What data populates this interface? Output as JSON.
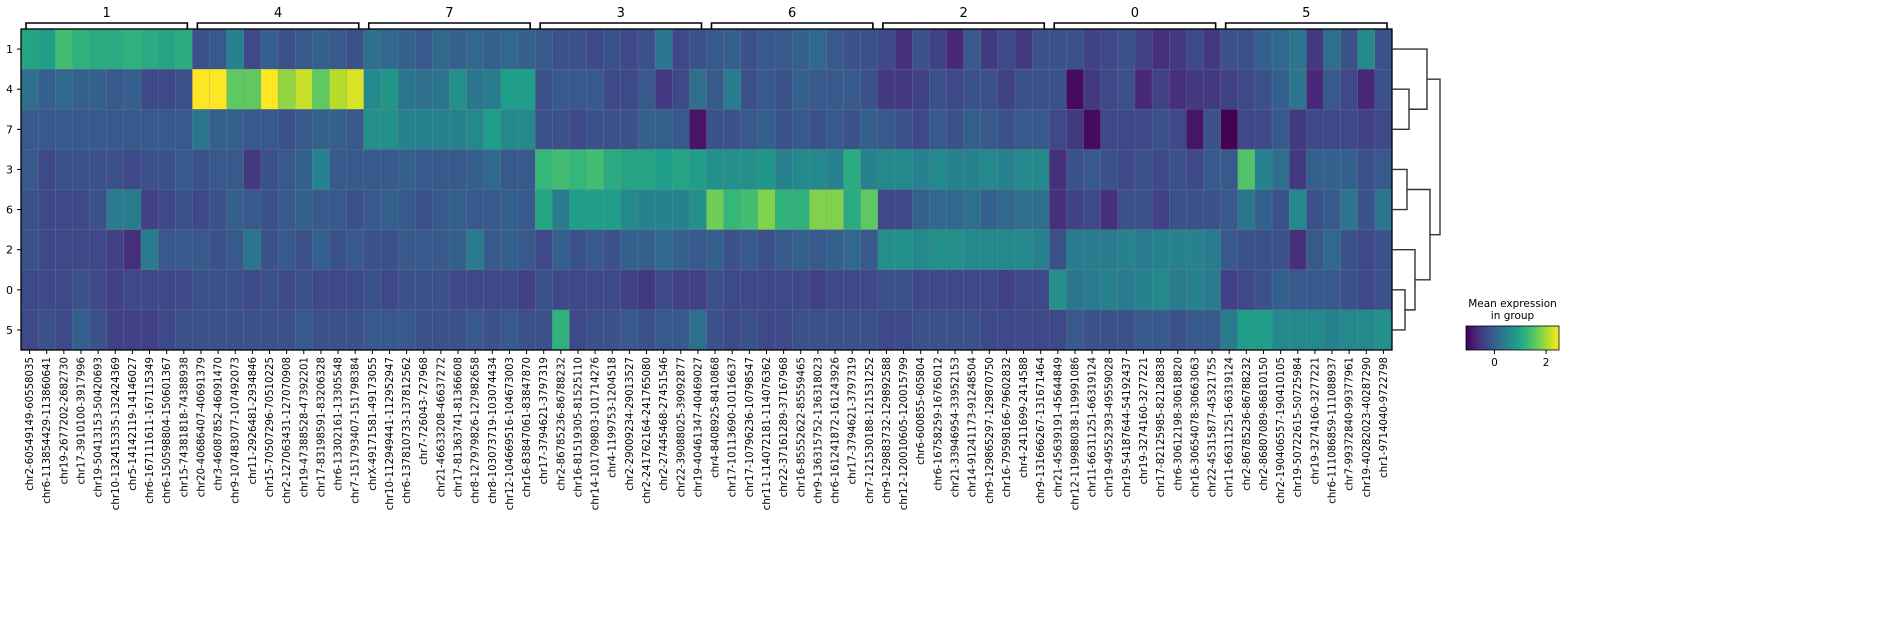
{
  "chart_data": {
    "type": "heatmap",
    "groups": [
      "1",
      "4",
      "7",
      "3",
      "6",
      "2",
      "0",
      "5"
    ],
    "rows": [
      "1",
      "4",
      "7",
      "3",
      "6",
      "2",
      "0",
      "5"
    ],
    "columns": [
      "chr2-60549149-60558035",
      "chr6-113854429-113860641",
      "chr19-2677202-2682730",
      "chr17-3910100-3917996",
      "chr19-50413153-50420693",
      "chr10-132415335-132424369",
      "chr5-14142119-14146027",
      "chr6-167111611-167115349",
      "chr6-150598804-150601367",
      "chr15-74381818-74388938",
      "chr20-40686407-40691379",
      "chr3-46087852-46091470",
      "chr9-107483077-107492073",
      "chr11-2926481-2934846",
      "chr15-70507296-70510225",
      "chr2-127063431-127070908",
      "chr19-47388528-47392201",
      "chr17-83198591-83206328",
      "chr6-13302161-13305548",
      "chr7-151793407-151798384",
      "chrX-49171581-49173055",
      "chr10-112949441-112952947",
      "chr6-137810733-137812562",
      "chr7-726043-727968",
      "chr21-46633208-46637272",
      "chr17-81363741-81366608",
      "chr8-127979826-127982658",
      "chr8-103073719-103074434",
      "chr12-104669516-104673003",
      "chr16-83847061-83847870",
      "chr17-3794621-3797319",
      "chr2-86785236-86788232",
      "chr16-81519305-81525110",
      "chr14-101709803-101714276",
      "chr4-1199753-1204518",
      "chr2-29009234-29013527",
      "chr2-241762164-241765080",
      "chr2-27445468-27451546",
      "chr22-39088025-39092877",
      "chr19-40461347-40469027",
      "chr4-8408925-8410868",
      "chr17-10113690-10116637",
      "chr17-10796236-10798547",
      "chr11-114072181-114076362",
      "chr22-37161289-37167968",
      "chr16-85552622-85559465",
      "chr9-136315752-136318023",
      "chr6-161241872-161243926",
      "chr17-3794621-3797319",
      "chr7-121530188-121531252",
      "chr9-129883732-129892588",
      "chr12-120010605-120015799",
      "chr6-600855-605804",
      "chr6-16758259-16765012",
      "chr21-33946954-33952153",
      "chr14-91241173-91248504",
      "chr9-129865297-129870750",
      "chr16-79598166-79602832",
      "chr4-2411699-2414588",
      "chr9-131666267-131671464",
      "chr21-45639191-45644849",
      "chr12-119988038-119991086",
      "chr11-66311251-66319124",
      "chr19-49552393-49559028",
      "chr19-54187644-54192437",
      "chr19-3274160-3277221",
      "chr17-82125985-82128838",
      "chr6-30612198-30618820",
      "chr16-30654078-30663063",
      "chr22-45315877-45321755",
      "chr11-66311251-66319124",
      "chr2-86785236-86788232",
      "chr2-86807089-86810150",
      "chr2-190406557-190410105",
      "chr19-50722615-50725984",
      "chr19-3274160-3277221",
      "chr6-111086859-111088937",
      "chr7-99372840-99377961",
      "chr19-40282023-40287290",
      "chr1-9714040-9722798"
    ],
    "values": [
      [
        1.0,
        0.9,
        1.4,
        1.2,
        1.1,
        1.1,
        1.2,
        1.1,
        1.0,
        1.1,
        -0.2,
        -0.1,
        0.5,
        -0.3,
        0.0,
        -0.2,
        -0.1,
        0.0,
        -0.1,
        -0.2,
        0.2,
        0.1,
        0.0,
        -0.1,
        0.1,
        0.0,
        0.1,
        0.0,
        0.1,
        0.0,
        -0.1,
        -0.2,
        -0.2,
        -0.3,
        -0.2,
        -0.3,
        -0.2,
        0.3,
        -0.3,
        -0.2,
        -0.1,
        0.0,
        -0.2,
        -0.1,
        -0.1,
        0.0,
        0.1,
        -0.1,
        -0.2,
        -0.2,
        -0.3,
        -0.6,
        -0.2,
        -0.4,
        -0.7,
        -0.1,
        -0.5,
        -0.3,
        -0.5,
        -0.2,
        -0.2,
        -0.2,
        -0.4,
        -0.3,
        -0.2,
        -0.4,
        -0.6,
        -0.5,
        -0.3,
        -0.5,
        -0.2,
        -0.2,
        0.0,
        0.1,
        0.3,
        -0.5,
        0.2,
        -0.2,
        0.6,
        -0.2
      ],
      [
        0.2,
        0.0,
        0.1,
        0.0,
        0.0,
        -0.1,
        0.0,
        -0.3,
        -0.3,
        -0.2,
        2.5,
        2.5,
        1.6,
        1.6,
        2.5,
        1.9,
        2.2,
        1.6,
        2.1,
        2.3,
        0.6,
        0.8,
        0.3,
        0.2,
        0.3,
        0.7,
        0.3,
        0.4,
        0.9,
        0.9,
        -0.2,
        -0.1,
        -0.1,
        -0.1,
        -0.3,
        -0.3,
        -0.1,
        -0.5,
        -0.3,
        0.2,
        -0.1,
        0.4,
        -0.2,
        -0.1,
        -0.2,
        0.0,
        -0.1,
        -0.1,
        -0.1,
        -0.2,
        -0.5,
        -0.5,
        -0.4,
        -0.2,
        -0.3,
        -0.2,
        -0.2,
        -0.4,
        -0.2,
        -0.2,
        -0.2,
        -1.0,
        -0.5,
        -0.3,
        -0.2,
        -0.7,
        -0.4,
        -0.6,
        -0.5,
        -0.5,
        -0.4,
        -0.3,
        -0.2,
        0.0,
        0.3,
        -0.7,
        -0.1,
        -0.3,
        -0.7,
        -0.2
      ],
      [
        -0.1,
        -0.1,
        -0.1,
        -0.1,
        -0.1,
        -0.1,
        -0.1,
        -0.1,
        -0.1,
        -0.1,
        0.3,
        0.0,
        0.0,
        -0.1,
        -0.1,
        -0.2,
        -0.1,
        0.0,
        0.0,
        -0.1,
        0.7,
        0.7,
        0.5,
        0.5,
        0.5,
        0.5,
        0.6,
        0.9,
        0.6,
        0.6,
        -0.2,
        -0.2,
        -0.3,
        -0.2,
        -0.2,
        -0.2,
        0.0,
        0.0,
        -0.1,
        -0.9,
        -0.2,
        -0.2,
        -0.1,
        0.0,
        -0.2,
        -0.1,
        -0.2,
        -0.1,
        -0.2,
        0.0,
        -0.1,
        -0.2,
        -0.3,
        -0.1,
        -0.2,
        0.0,
        -0.1,
        -0.2,
        -0.1,
        -0.1,
        -0.3,
        -0.5,
        -1.0,
        -0.3,
        -0.3,
        -0.3,
        -0.2,
        -0.3,
        -0.9,
        -0.2,
        -1.1,
        -0.3,
        -0.3,
        -0.1,
        -0.5,
        -0.3,
        -0.3,
        -0.3,
        -0.4,
        -0.3
      ],
      [
        -0.1,
        -0.3,
        -0.2,
        -0.2,
        -0.2,
        -0.2,
        -0.3,
        -0.2,
        -0.2,
        -0.1,
        -0.2,
        -0.1,
        -0.1,
        -0.5,
        -0.2,
        -0.1,
        0.0,
        0.5,
        -0.1,
        -0.1,
        -0.1,
        -0.1,
        0.0,
        -0.1,
        -0.1,
        -0.1,
        0.0,
        0.1,
        -0.1,
        -0.1,
        1.3,
        1.4,
        1.3,
        1.4,
        1.1,
        1.0,
        1.0,
        0.9,
        1.0,
        0.9,
        0.7,
        0.7,
        0.7,
        0.8,
        0.5,
        0.6,
        0.6,
        0.5,
        1.1,
        0.5,
        0.6,
        0.6,
        0.5,
        0.6,
        0.5,
        0.5,
        0.6,
        0.5,
        0.6,
        0.6,
        -0.6,
        -0.2,
        -0.1,
        -0.2,
        -0.3,
        -0.2,
        -0.3,
        -0.2,
        -0.3,
        -0.1,
        -0.1,
        1.5,
        0.5,
        0.2,
        -0.5,
        0.0,
        0.0,
        0.0,
        -0.2,
        -0.1
      ],
      [
        -0.2,
        -0.3,
        -0.3,
        -0.3,
        -0.2,
        0.4,
        0.4,
        -0.4,
        -0.3,
        -0.2,
        -0.3,
        -0.2,
        0.0,
        -0.1,
        -0.2,
        -0.1,
        0.0,
        -0.1,
        -0.1,
        -0.2,
        -0.1,
        0.0,
        -0.1,
        -0.2,
        -0.1,
        0.0,
        -0.1,
        -0.1,
        0.0,
        -0.1,
        1.0,
        0.4,
        0.9,
        0.9,
        0.9,
        0.6,
        0.5,
        0.5,
        0.5,
        0.7,
        1.7,
        1.3,
        1.4,
        1.8,
        1.2,
        1.2,
        1.8,
        1.8,
        1.1,
        1.6,
        -0.3,
        -0.3,
        0.0,
        0.1,
        0.1,
        0.2,
        0.0,
        0.1,
        0.2,
        0.2,
        -0.6,
        -0.4,
        -0.3,
        -0.6,
        -0.2,
        -0.2,
        -0.4,
        -0.2,
        -0.2,
        -0.2,
        -0.1,
        0.3,
        0.0,
        -0.2,
        0.6,
        -0.2,
        -0.1,
        0.3,
        -0.2,
        0.3
      ],
      [
        -0.2,
        -0.3,
        -0.3,
        -0.3,
        -0.3,
        -0.4,
        -0.6,
        0.4,
        -0.1,
        -0.1,
        -0.1,
        -0.2,
        -0.1,
        0.3,
        -0.2,
        -0.1,
        -0.2,
        0.0,
        -0.2,
        -0.1,
        -0.2,
        -0.2,
        -0.1,
        -0.1,
        -0.1,
        0.0,
        0.4,
        -0.1,
        0.0,
        -0.1,
        -0.3,
        0.0,
        -0.2,
        -0.1,
        -0.2,
        0.0,
        0.0,
        0.1,
        0.0,
        -0.1,
        0.0,
        -0.2,
        -0.1,
        -0.2,
        -0.1,
        0.0,
        -0.1,
        0.0,
        0.1,
        -0.1,
        0.7,
        0.7,
        0.6,
        0.7,
        0.7,
        0.6,
        0.6,
        0.6,
        0.6,
        0.5,
        -0.2,
        0.4,
        0.4,
        0.4,
        0.5,
        0.4,
        0.5,
        0.5,
        0.5,
        0.4,
        -0.1,
        -0.2,
        -0.2,
        -0.2,
        -0.6,
        -0.1,
        0.1,
        -0.2,
        -0.3,
        -0.2
      ],
      [
        -0.3,
        -0.3,
        -0.3,
        -0.2,
        -0.3,
        -0.4,
        -0.3,
        -0.3,
        -0.3,
        -0.3,
        -0.2,
        -0.2,
        -0.2,
        -0.3,
        -0.2,
        -0.3,
        -0.2,
        -0.3,
        -0.3,
        -0.3,
        -0.2,
        -0.3,
        -0.2,
        -0.2,
        -0.2,
        -0.3,
        -0.3,
        -0.3,
        -0.3,
        -0.4,
        -0.2,
        -0.3,
        -0.3,
        -0.3,
        -0.3,
        -0.4,
        -0.5,
        -0.3,
        -0.4,
        -0.4,
        -0.2,
        -0.3,
        -0.3,
        -0.3,
        -0.3,
        -0.3,
        -0.4,
        -0.3,
        -0.3,
        -0.3,
        -0.2,
        -0.2,
        -0.3,
        -0.3,
        -0.3,
        -0.3,
        -0.3,
        -0.4,
        -0.3,
        -0.3,
        0.7,
        0.3,
        0.4,
        0.5,
        0.4,
        0.5,
        0.6,
        0.4,
        0.5,
        0.4,
        -0.4,
        -0.3,
        -0.2,
        0.0,
        -0.1,
        -0.1,
        -0.1,
        -0.2,
        -0.3,
        -0.2
      ],
      [
        -0.3,
        -0.2,
        -0.3,
        0.0,
        -0.2,
        -0.4,
        -0.4,
        -0.4,
        -0.3,
        -0.2,
        -0.2,
        -0.2,
        -0.2,
        -0.2,
        -0.2,
        -0.2,
        -0.1,
        -0.2,
        -0.2,
        -0.2,
        -0.1,
        -0.1,
        -0.1,
        -0.2,
        -0.2,
        -0.2,
        -0.1,
        -0.2,
        -0.1,
        -0.2,
        -0.2,
        1.2,
        -0.3,
        -0.2,
        -0.2,
        -0.1,
        -0.2,
        -0.1,
        -0.1,
        0.2,
        -0.2,
        -0.3,
        -0.2,
        -0.3,
        -0.3,
        -0.2,
        -0.2,
        -0.2,
        -0.2,
        -0.2,
        -0.3,
        -0.3,
        -0.2,
        -0.2,
        -0.2,
        -0.2,
        -0.3,
        -0.3,
        -0.3,
        -0.3,
        -0.3,
        -0.1,
        -0.2,
        -0.2,
        -0.2,
        -0.1,
        -0.1,
        -0.2,
        -0.1,
        -0.1,
        0.4,
        0.9,
        0.9,
        0.6,
        0.6,
        0.6,
        0.5,
        0.6,
        0.6,
        0.7
      ]
    ],
    "colorbar": {
      "title_lines": [
        "Mean expression",
        "in group"
      ],
      "ticks": [
        "0",
        "2"
      ],
      "range": [
        -1.1,
        2.5
      ]
    },
    "colormap": "viridis",
    "grid": true,
    "dendrogram": "right"
  }
}
